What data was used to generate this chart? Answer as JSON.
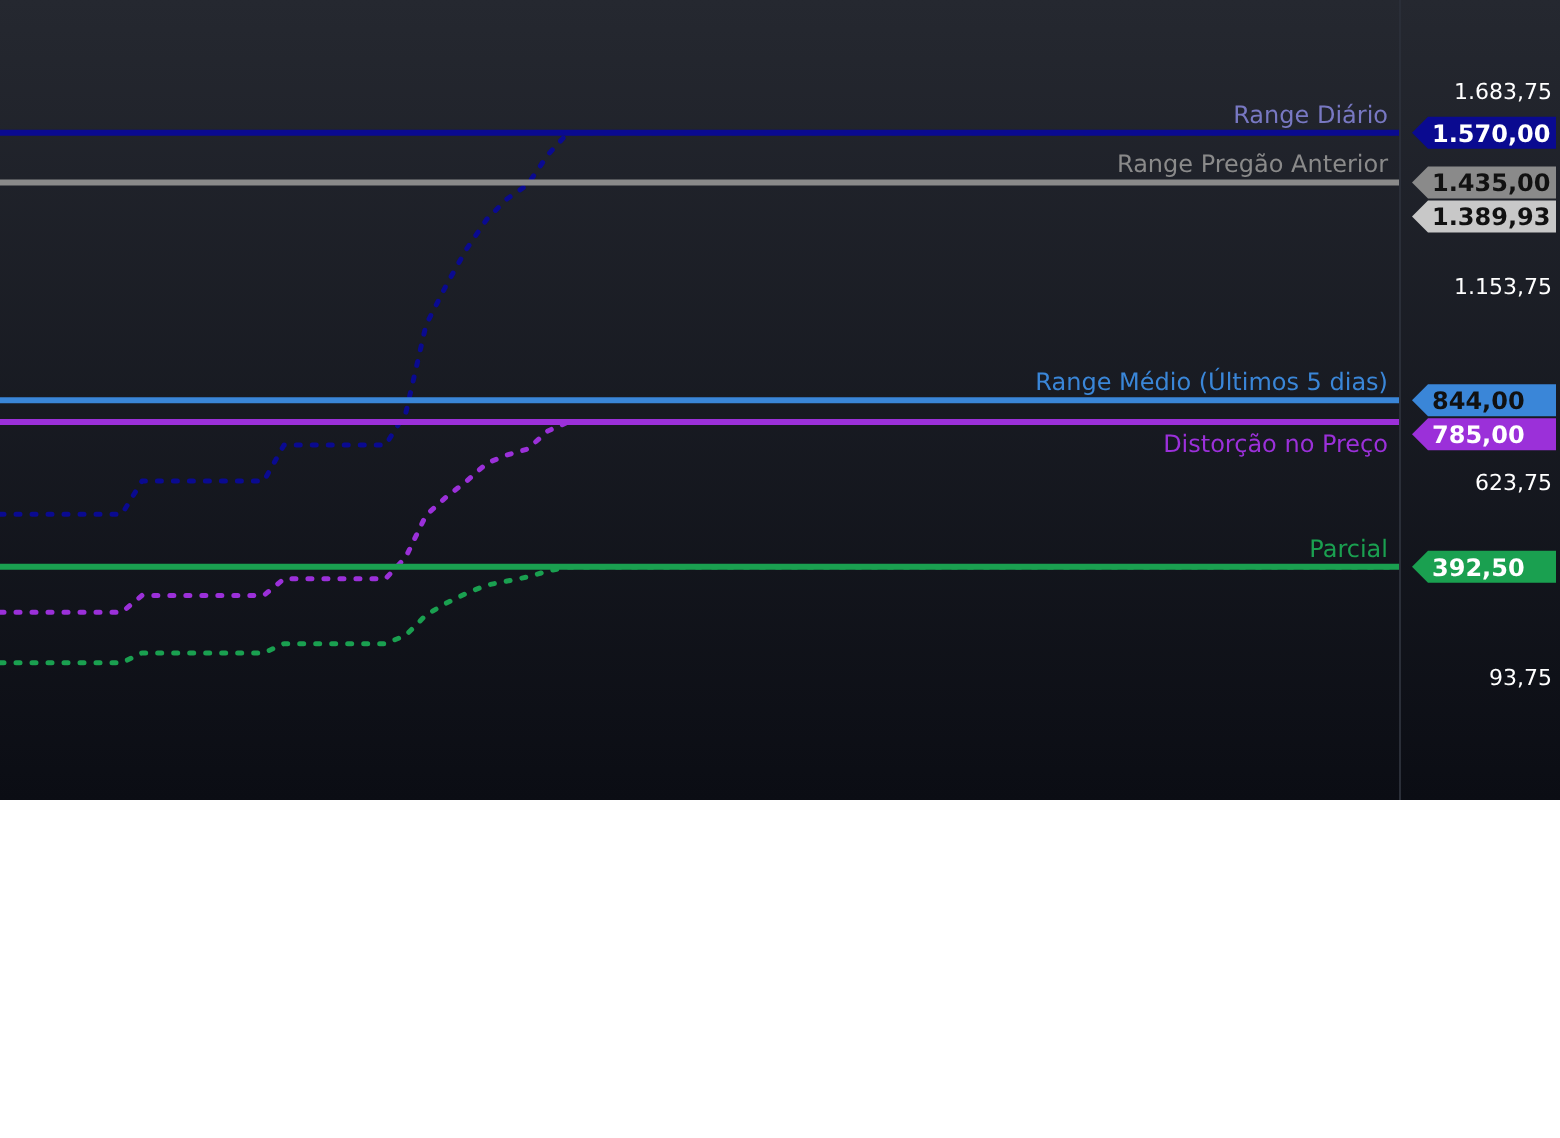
{
  "chart_data": {
    "type": "line",
    "categories": [
      null,
      null,
      null,
      null,
      null,
      null,
      null,
      null,
      null,
      null,
      null,
      null,
      null,
      null,
      null,
      null,
      null,
      null,
      null,
      null,
      null,
      null,
      null,
      null,
      null,
      null,
      null,
      null,
      null,
      null,
      null,
      null,
      null,
      null,
      null,
      null,
      null,
      null,
      null,
      null,
      null,
      null,
      null,
      null,
      null,
      null,
      null,
      null,
      null,
      null,
      null,
      null,
      null,
      null,
      null,
      null,
      null,
      null,
      null,
      null,
      null,
      null,
      null,
      null,
      null,
      null,
      null,
      null,
      null,
      null
    ],
    "series": [
      {
        "color": "#0a0a90",
        "values": [
          535,
          535,
          535,
          535,
          535,
          535,
          535,
          625,
          625,
          625,
          625,
          625,
          625,
          625,
          723,
          723,
          723,
          723,
          723,
          723,
          810,
          1049,
          1157,
          1255,
          1336,
          1391,
          1429,
          1510,
          1570,
          1570,
          1570,
          1570,
          1570,
          1570,
          1570,
          1570,
          1570,
          1570,
          1570,
          1570,
          1570,
          1570,
          1570,
          1570,
          1570,
          1570,
          1570,
          1570,
          1570,
          1570,
          1570,
          1570,
          1570,
          1570,
          1570,
          1570,
          1570,
          1570,
          1570,
          1570,
          1570,
          1570,
          1570,
          1570,
          1570,
          1570,
          1570,
          1570,
          1570,
          1570
        ]
      },
      {
        "color": "#9b30d9",
        "values": [
          269,
          269,
          269,
          269,
          269,
          269,
          269,
          315,
          315,
          315,
          315,
          315,
          315,
          315,
          360,
          360,
          360,
          360,
          360,
          360,
          419,
          533,
          582,
          625,
          674,
          696,
          712,
          761,
          785,
          785,
          785,
          785,
          785,
          785,
          785,
          785,
          785,
          785,
          785,
          785,
          785,
          785,
          785,
          785,
          785,
          785,
          785,
          785,
          785,
          785,
          785,
          785,
          785,
          785,
          785,
          785,
          785,
          785,
          785,
          785,
          785,
          785,
          785,
          785,
          785,
          785,
          785,
          785,
          785,
          785
        ]
      },
      {
        "color": "#1aa050",
        "values": [
          132,
          132,
          132,
          132,
          132,
          132,
          132,
          159,
          159,
          159,
          159,
          159,
          159,
          159,
          184,
          184,
          184,
          184,
          184,
          184,
          207,
          262,
          294,
          321,
          343,
          354,
          365,
          381,
          392,
          392,
          392,
          392,
          392,
          392,
          392,
          392,
          392,
          392,
          392,
          392,
          392,
          392,
          392,
          392,
          392,
          392,
          392,
          392,
          392,
          392,
          392,
          392,
          392,
          392,
          392,
          392,
          392,
          392,
          392,
          392,
          392,
          392,
          392,
          392,
          392,
          392,
          392,
          392,
          392,
          392
        ]
      }
    ],
    "ylim": [
      -240,
      1930
    ],
    "yticks": [
      {
        "value": 93.75,
        "label": "93,75"
      },
      {
        "value": 623.75,
        "label": "623,75"
      },
      {
        "value": 1153.75,
        "label": "1.153,75"
      },
      {
        "value": 1683.75,
        "label": "1.683,75"
      }
    ],
    "ref_lines": [
      {
        "axis": "y",
        "value": 1570,
        "label": "Range Diário",
        "color": "#0a0a90"
      },
      {
        "axis": "y",
        "value": 1435,
        "label": "Range Pregão Anterior",
        "color": "#8a8a8a"
      },
      {
        "axis": "y",
        "value": 844,
        "label": "Range Médio (Últimos 5 dias)",
        "color": "#3a86d8"
      },
      {
        "axis": "y",
        "value": 785,
        "label": "Distorção no Preço",
        "color": "#9b30d9"
      },
      {
        "axis": "y",
        "value": 392.5,
        "label": "Parcial",
        "color": "#1aa050"
      }
    ],
    "annotations": [
      "1.570,00",
      "1.435,00",
      "1.389,93",
      "844,00",
      "785,00",
      "392,50"
    ],
    "line_style": "dotted",
    "marker": "none",
    "grid": false
  }
}
